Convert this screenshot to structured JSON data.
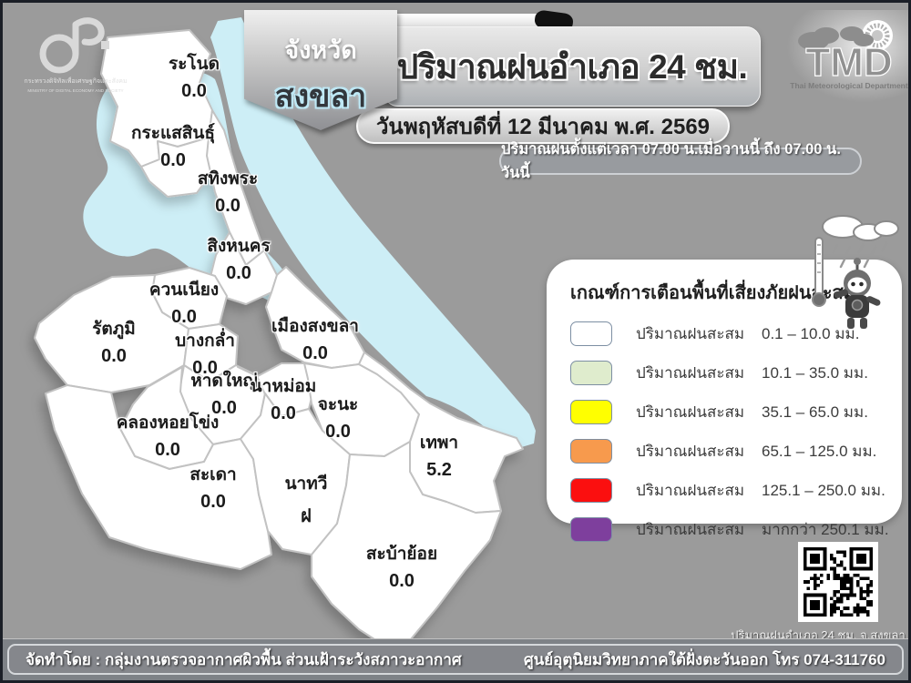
{
  "header": {
    "province_label": "จังหวัด",
    "province_name": "สงขลา",
    "title": "ปริมาณฝนอำเภอ 24 ชม.",
    "date_line": "วันพฤหัสบดีที่ 12 มีนาคม พ.ศ. 2569",
    "period_line": "ปริมาณฝนตั้งแต่เวลา 07.00 น.เมื่อวานนี้ ถึง 07.00 น. วันนี้"
  },
  "logos": {
    "mdes": {
      "line1": "กระทรวงดิจิทัลเพื่อเศรษฐกิจและสังคม",
      "line2": "MINISTRY OF DIGITAL ECONOMY AND SOCIETY"
    },
    "tmd": {
      "acronym": "TMD",
      "caption": "Thai Meteorological Department"
    }
  },
  "map": {
    "water_color": "#cdeef6",
    "district_fill": "#ffffff",
    "districts": [
      {
        "name": "ระโนด",
        "value": "0.0"
      },
      {
        "name": "กระแสสินธุ์",
        "value": "0.0"
      },
      {
        "name": "สทิงพระ",
        "value": "0.0"
      },
      {
        "name": "สิงหนคร",
        "value": "0.0"
      },
      {
        "name": "ควนเนียง",
        "value": "0.0"
      },
      {
        "name": "รัตภูมิ",
        "value": "0.0"
      },
      {
        "name": "บางกล่ำ",
        "value": "0.0"
      },
      {
        "name": "เมืองสงขลา",
        "value": "0.0"
      },
      {
        "name": "หาดใหญ่",
        "value": "0.0"
      },
      {
        "name": "นาหม่อม",
        "value": "0.0"
      },
      {
        "name": "จะนะ",
        "value": "0.0"
      },
      {
        "name": "คลองหอยโข่ง",
        "value": "0.0"
      },
      {
        "name": "สะเดา",
        "value": "0.0"
      },
      {
        "name": "นาทวี",
        "value": "ฝ"
      },
      {
        "name": "เทพา",
        "value": "5.2"
      },
      {
        "name": "สะบ้าย้อย",
        "value": "0.0"
      }
    ]
  },
  "legend": {
    "title": "เกณฑ์การเตือนพื้นที่เสี่ยงภัยฝนสะสม",
    "rows": [
      {
        "label": "ปริมาณฝนสะสม",
        "range": "0.1 – 10.0 มม.",
        "color": "#ffffff"
      },
      {
        "label": "ปริมาณฝนสะสม",
        "range": "10.1 – 35.0 มม.",
        "color": "#dfeccd"
      },
      {
        "label": "ปริมาณฝนสะสม",
        "range": "35.1 – 65.0 มม.",
        "color": "#ffff00"
      },
      {
        "label": "ปริมาณฝนสะสม",
        "range": "65.1 – 125.0 มม.",
        "color": "#f79a4d"
      },
      {
        "label": "ปริมาณฝนสะสม",
        "range": "125.1 – 250.0 มม.",
        "color": "#fb0f0f"
      },
      {
        "label": "ปริมาณฝนสะสม",
        "range": "มากกว่า 250.1 มม.",
        "color": "#7e3f9d"
      }
    ]
  },
  "qr": {
    "caption": "ปริมาณฝนอำเภอ 24 ชม. จ.สงขลา"
  },
  "footer": {
    "left": "จัดทำโดย : กลุ่มงานตรวจอากาศผิวพื้น ส่วนเฝ้าระวังสภาวะอากาศ",
    "right": "ศูนย์อุตุนิยมวิทยาภาคใต้ฝั่งตะวันออก โทร 074-311760"
  }
}
